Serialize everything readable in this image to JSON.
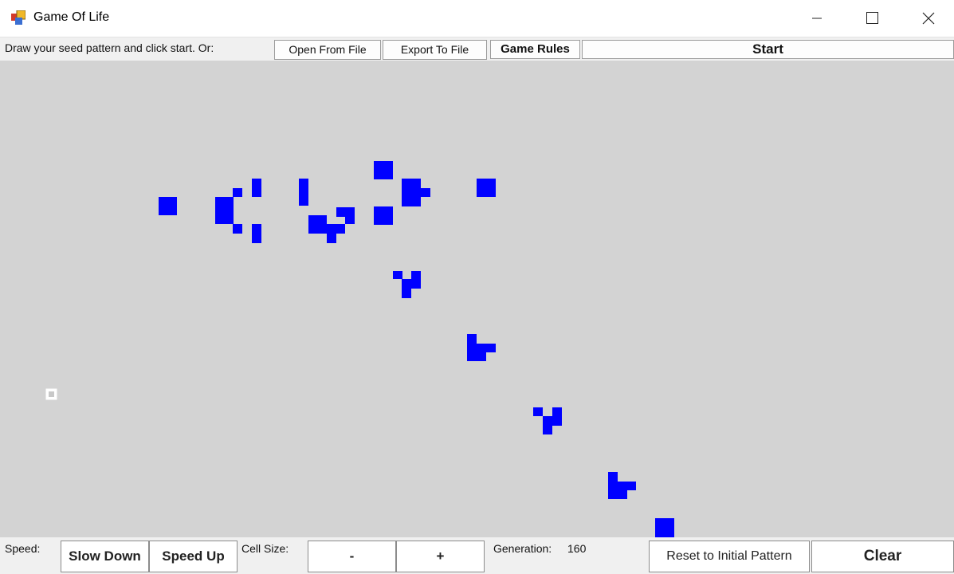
{
  "window": {
    "title": "Game Of Life",
    "icon": "app-window-icon",
    "controls": [
      "minimize-icon",
      "maximize-icon",
      "close-icon"
    ]
  },
  "toolbar": {
    "instruction": "Draw your seed pattern and click start. Or:",
    "open_label": "Open From File",
    "export_label": "Export To File",
    "rules_label": "Game Rules",
    "start_label": "Start"
  },
  "grid": {
    "cell_color": "#0000ff",
    "background_color": "#d3d3d3",
    "cursor_icon": "cell-cursor-icon"
  },
  "bottom": {
    "speed_label": "Speed:",
    "slow_label": "Slow Down",
    "fast_label": "Speed Up",
    "cell_size_label": "Cell Size:",
    "minus_label": "-",
    "plus_label": "+",
    "generation_label": "Generation:",
    "generation_value": "160",
    "reset_label": "Reset to Initial Pattern",
    "clear_label": "Clear"
  }
}
